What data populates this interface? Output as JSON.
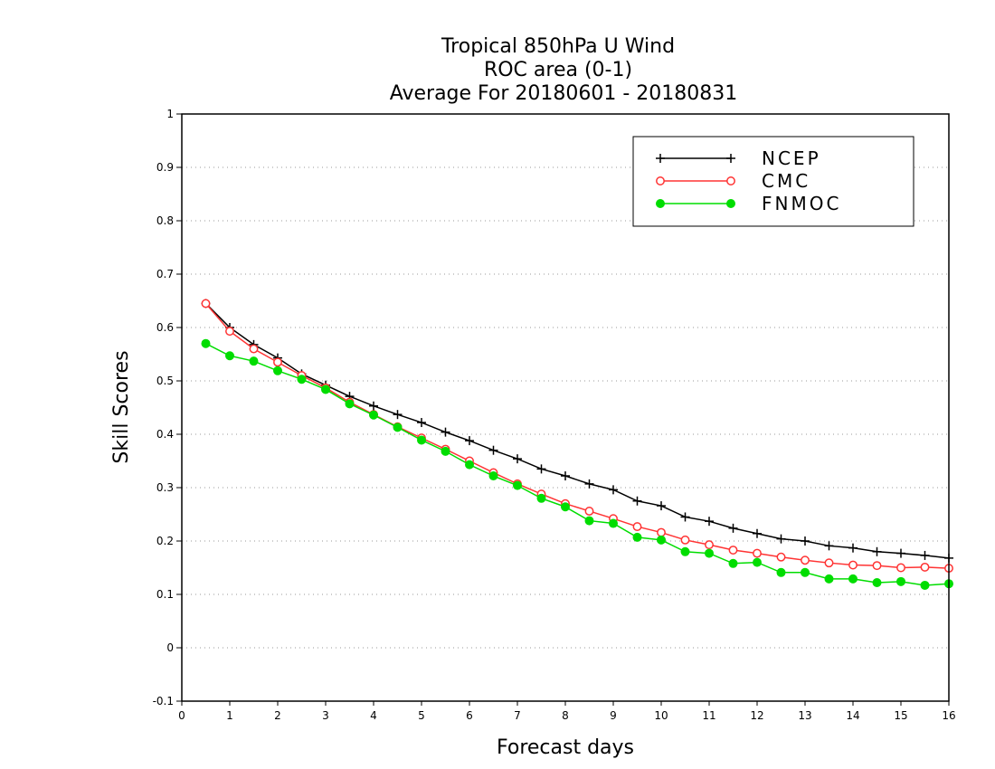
{
  "chart_data": {
    "type": "line",
    "title": [
      "Tropical 850hPa U Wind",
      "ROC area (0-1)",
      "Average For 20180601 - 20180831"
    ],
    "xlabel": "Forecast days",
    "ylabel": "Skill Scores",
    "xlim": [
      0,
      16
    ],
    "ylim": [
      -0.1,
      1
    ],
    "xticks": [
      0,
      1,
      2,
      3,
      4,
      5,
      6,
      7,
      8,
      9,
      10,
      11,
      12,
      13,
      14,
      15,
      16
    ],
    "yticks": [
      -0.1,
      0,
      0.1,
      0.2,
      0.3,
      0.4,
      0.5,
      0.6,
      0.7,
      0.8,
      0.9,
      1
    ],
    "ytick_labels": [
      "-0.1",
      "0",
      "0.1",
      "0.2",
      "0.3",
      "0.4",
      "0.5",
      "0.6",
      "0.7",
      "0.8",
      "0.9",
      "1"
    ],
    "grid": "horizontal-dotted",
    "legend_position": "top-right",
    "x": [
      0.5,
      1,
      1.5,
      2,
      2.5,
      3,
      3.5,
      4,
      4.5,
      5,
      5.5,
      6,
      6.5,
      7,
      7.5,
      8,
      8.5,
      9,
      9.5,
      10,
      10.5,
      11,
      11.5,
      12,
      12.5,
      13,
      13.5,
      14,
      14.5,
      15,
      15.5,
      16
    ],
    "series": [
      {
        "name": "NCEP",
        "color": "#000000",
        "marker": "plus",
        "values": [
          0.645,
          0.6,
          0.568,
          0.543,
          0.513,
          0.492,
          0.471,
          0.453,
          0.437,
          0.422,
          0.404,
          0.388,
          0.37,
          0.354,
          0.335,
          0.322,
          0.307,
          0.296,
          0.275,
          0.266,
          0.245,
          0.237,
          0.224,
          0.214,
          0.204,
          0.2,
          0.191,
          0.187,
          0.18,
          0.177,
          0.173,
          0.168
        ]
      },
      {
        "name": "CMC",
        "color": "#ff3333",
        "marker": "open-circle",
        "values": [
          0.645,
          0.593,
          0.56,
          0.535,
          0.51,
          0.487,
          0.46,
          0.437,
          0.414,
          0.393,
          0.372,
          0.35,
          0.328,
          0.307,
          0.288,
          0.27,
          0.256,
          0.242,
          0.227,
          0.216,
          0.202,
          0.193,
          0.183,
          0.177,
          0.17,
          0.164,
          0.159,
          0.155,
          0.154,
          0.15,
          0.151,
          0.149
        ]
      },
      {
        "name": "FNMOC",
        "color": "#00dd00",
        "marker": "filled-circle",
        "values": [
          0.57,
          0.547,
          0.537,
          0.519,
          0.503,
          0.484,
          0.457,
          0.436,
          0.413,
          0.389,
          0.368,
          0.343,
          0.322,
          0.304,
          0.28,
          0.264,
          0.238,
          0.233,
          0.207,
          0.202,
          0.18,
          0.177,
          0.158,
          0.16,
          0.141,
          0.141,
          0.129,
          0.129,
          0.122,
          0.124,
          0.117,
          0.12
        ]
      }
    ]
  }
}
